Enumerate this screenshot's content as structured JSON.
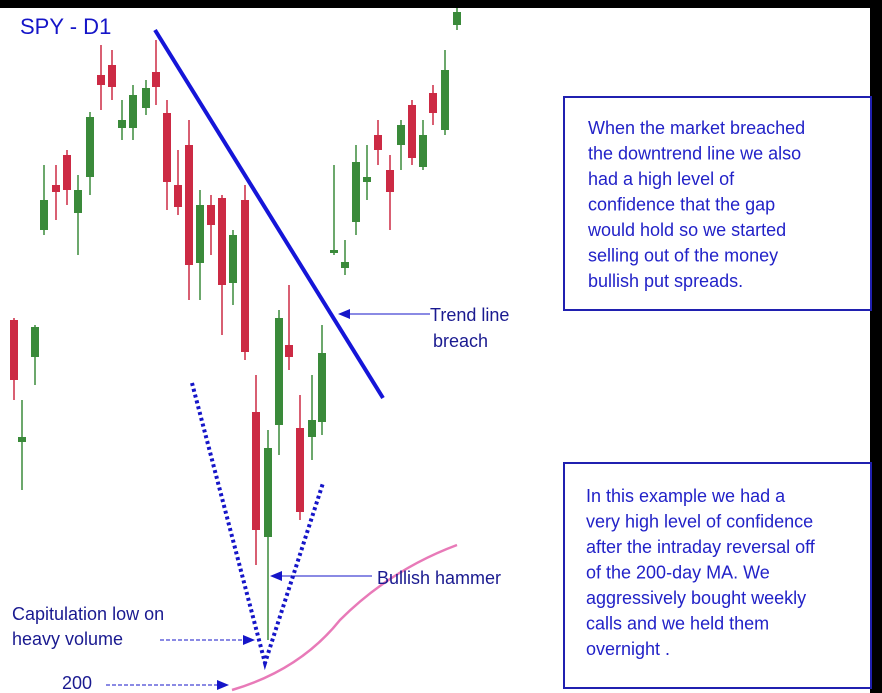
{
  "chart_data": {
    "type": "candlestick",
    "title": "SPY - D1",
    "annotations": {
      "trend_line": [
        "Trend line",
        "breach"
      ],
      "hammer": "Bullish hammer",
      "capitulation": [
        "Capitulation low on",
        "heavy volume"
      ],
      "ma": "200"
    },
    "notes": [
      [
        "When the market breached",
        "the downtrend line we also",
        "had a high level of",
        "confidence that the gap",
        "would hold so we started",
        "selling out of the money",
        "bullish put spreads."
      ],
      [
        "In this example we had a",
        "very high level of confidence",
        "after the intraday reversal off",
        "of the 200-day MA. We",
        "aggressively bought weekly",
        "calls and we held them",
        "overnight ."
      ]
    ]
  }
}
